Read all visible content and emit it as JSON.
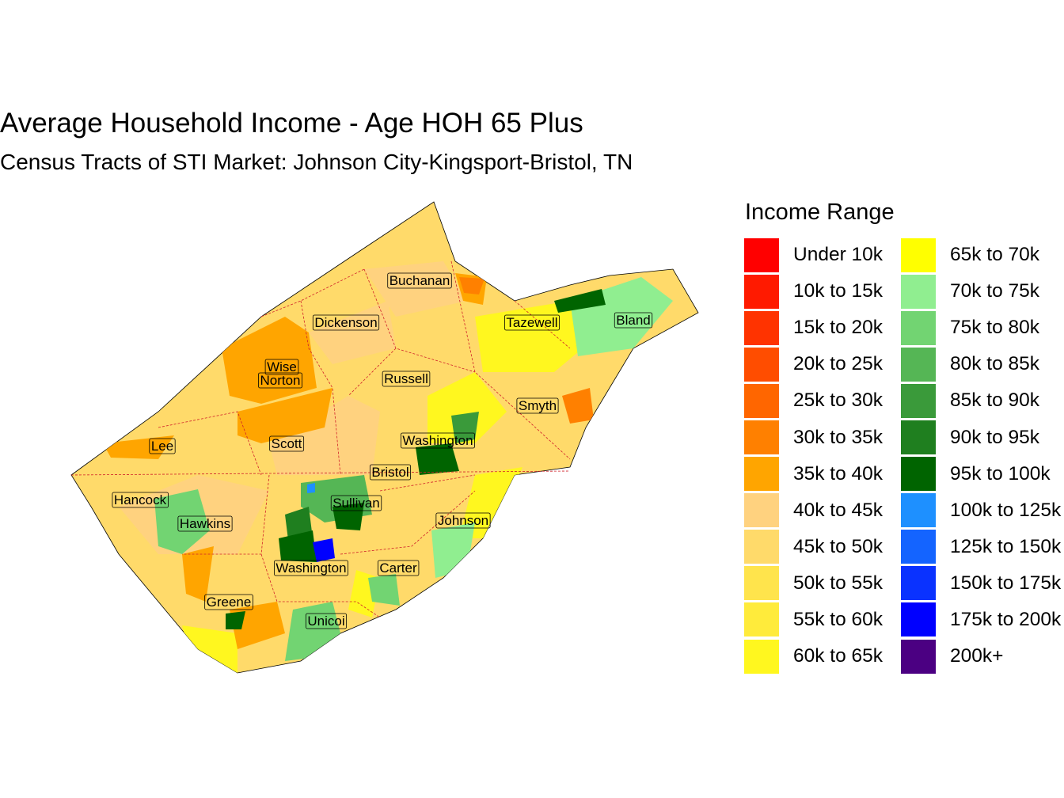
{
  "title": "Average Household Income - Age HOH 65 Plus",
  "subtitle": "Census Tracts of STI Market: Johnson City-Kingsport-Bristol, TN",
  "legend": {
    "title": "Income Range",
    "items": [
      {
        "label": "Under 10k",
        "color": "#FF0000"
      },
      {
        "label": "10k to 15k",
        "color": "#FF1A00"
      },
      {
        "label": "15k to 20k",
        "color": "#FF3300"
      },
      {
        "label": "20k to 25k",
        "color": "#FF4D00"
      },
      {
        "label": "25k to 30k",
        "color": "#FF6600"
      },
      {
        "label": "30k to 35k",
        "color": "#FF8000"
      },
      {
        "label": "35k to 40k",
        "color": "#FFA500"
      },
      {
        "label": "40k to 45k",
        "color": "#FFD27F"
      },
      {
        "label": "45k to 50k",
        "color": "#FFDA6A"
      },
      {
        "label": "50k to 55k",
        "color": "#FFE44C"
      },
      {
        "label": "55k to 60k",
        "color": "#FFEB3B"
      },
      {
        "label": "60k to 65k",
        "color": "#FFF71F"
      },
      {
        "label": "65k to 70k",
        "color": "#FFFF00"
      },
      {
        "label": "70k to 75k",
        "color": "#90EE90"
      },
      {
        "label": "75k to 80k",
        "color": "#72D472"
      },
      {
        "label": "80k to 85k",
        "color": "#55B655"
      },
      {
        "label": "85k to 90k",
        "color": "#3A9A3A"
      },
      {
        "label": "90k to 95k",
        "color": "#1F7F1F"
      },
      {
        "label": "95k to 100k",
        "color": "#006400"
      },
      {
        "label": "100k to 125k",
        "color": "#1E90FF"
      },
      {
        "label": "125k to 150k",
        "color": "#1464FF"
      },
      {
        "label": "150k to 175k",
        "color": "#0A32FF"
      },
      {
        "label": "175k to 200k",
        "color": "#0000FF"
      },
      {
        "label": "200k+",
        "color": "#4B0082"
      }
    ]
  },
  "counties": [
    "Buchanan",
    "Dickenson",
    "Tazewell",
    "Bland",
    "Wise",
    "Norton",
    "Russell",
    "Smyth",
    "Lee",
    "Scott",
    "Washington",
    "Bristol",
    "Hancock",
    "Sullivan",
    "Hawkins",
    "Johnson",
    "Washington",
    "Carter",
    "Greene",
    "Unicoi"
  ]
}
